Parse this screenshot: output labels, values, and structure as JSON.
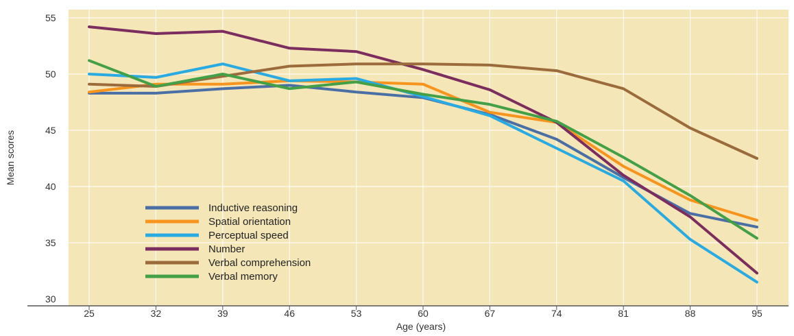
{
  "chart_data": {
    "type": "line",
    "xlabel": "Age (years)",
    "ylabel": "Mean scores",
    "x": [
      25,
      32,
      39,
      46,
      53,
      60,
      67,
      74,
      81,
      88,
      95
    ],
    "ylim": [
      30,
      55
    ],
    "yticks": [
      30,
      35,
      40,
      45,
      50,
      55
    ],
    "grid": true,
    "legend_position": "bottom-left",
    "colors": {
      "background": "#f5e6b8",
      "gridline": "#ffffff",
      "axis": "#555555"
    },
    "series": [
      {
        "name": "Inductive reasoning",
        "color": "#4a6fa5",
        "values": [
          48.3,
          48.3,
          48.7,
          49.0,
          48.4,
          47.9,
          46.4,
          44.2,
          40.8,
          37.6,
          36.4
        ]
      },
      {
        "name": "Spatial orientation",
        "color": "#f7941d",
        "values": [
          48.4,
          49.1,
          49.1,
          49.4,
          49.3,
          49.1,
          46.6,
          45.7,
          41.8,
          38.8,
          37.0
        ]
      },
      {
        "name": "Perceptual speed",
        "color": "#29abe2",
        "values": [
          50.0,
          49.7,
          50.9,
          49.4,
          49.6,
          48.0,
          46.3,
          43.4,
          40.5,
          35.3,
          31.5
        ]
      },
      {
        "name": "Number",
        "color": "#7b2d5e",
        "values": [
          54.2,
          53.6,
          53.8,
          52.3,
          52.0,
          50.4,
          48.6,
          45.7,
          41.0,
          37.3,
          32.3
        ]
      },
      {
        "name": "Verbal comprehension",
        "color": "#9c6b3c",
        "values": [
          49.1,
          48.9,
          49.8,
          50.7,
          50.9,
          50.9,
          50.8,
          50.3,
          48.7,
          45.2,
          42.5
        ]
      },
      {
        "name": "Verbal memory",
        "color": "#43a047",
        "values": [
          51.2,
          48.9,
          50.0,
          48.7,
          49.3,
          48.2,
          47.3,
          45.8,
          42.6,
          39.2,
          35.4
        ]
      }
    ]
  }
}
